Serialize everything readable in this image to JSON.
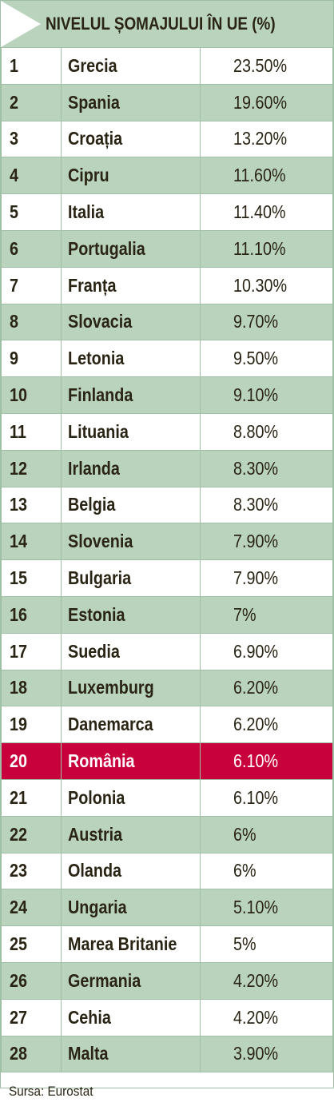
{
  "header": {
    "title": "NIVELUL ȘOMAJULUI ÎN UE (%)"
  },
  "table": {
    "highlight_row": 19,
    "rows": [
      [
        "1",
        "Grecia",
        "23.50%"
      ],
      [
        "2",
        "Spania",
        "19.60%"
      ],
      [
        "3",
        "Croația",
        "13.20%"
      ],
      [
        "4",
        "Cipru",
        "11.60%"
      ],
      [
        "5",
        "Italia",
        "11.40%"
      ],
      [
        "6",
        "Portugalia",
        "11.10%"
      ],
      [
        "7",
        "Franța",
        "10.30%"
      ],
      [
        "8",
        "Slovacia",
        "9.70%"
      ],
      [
        "9",
        "Letonia",
        "9.50%"
      ],
      [
        "10",
        "Finlanda",
        "9.10%"
      ],
      [
        "11",
        "Lituania",
        "8.80%"
      ],
      [
        "12",
        "Irlanda",
        "8.30%"
      ],
      [
        "13",
        "Belgia",
        "8.30%"
      ],
      [
        "14",
        "Slovenia",
        "7.90%"
      ],
      [
        "15",
        "Bulgaria",
        "7.90%"
      ],
      [
        "16",
        "Estonia",
        "7%"
      ],
      [
        "17",
        "Suedia",
        "6.90%"
      ],
      [
        "18",
        "Luxemburg",
        "6.20%"
      ],
      [
        "19",
        "Danemarca",
        "6.20%"
      ],
      [
        "20",
        "România",
        "6.10%"
      ],
      [
        "21",
        "Polonia",
        "6.10%"
      ],
      [
        "22",
        "Austria",
        "6%"
      ],
      [
        "23",
        "Olanda",
        "6%"
      ],
      [
        "24",
        "Ungaria",
        "5.10%"
      ],
      [
        "25",
        "Marea Britanie",
        "5%"
      ],
      [
        "26",
        "Germania",
        "4.20%"
      ],
      [
        "27",
        "Cehia",
        "4.20%"
      ],
      [
        "28",
        "Malta",
        "3.90%"
      ]
    ]
  },
  "footer": {
    "source": "Sursa: Eurostat"
  }
}
